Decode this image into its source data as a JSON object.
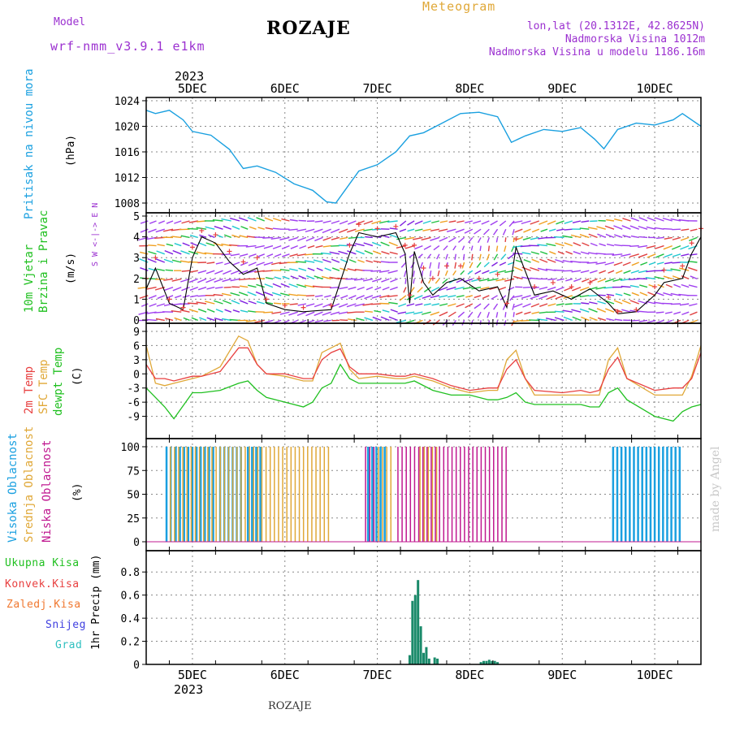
{
  "header": {
    "model_label": "Model",
    "model_name": "wrf-nmm_v3.9.1 e1km",
    "station": "ROZAJE",
    "meteogram": "Meteogram",
    "lonlat": "lon,lat (20.1312E, 42.8625N)",
    "altitude": "Nadmorska Visina 1012m",
    "model_altitude": "Nadmorska Visina u modelu 1186.16m",
    "year_top": "2023",
    "year_bottom": "2023",
    "footer_station": "ROZAJE",
    "credit": "made by Angel"
  },
  "day_labels": [
    "5DEC",
    "6DEC",
    "7DEC",
    "8DEC",
    "9DEC",
    "10DEC"
  ],
  "panels": {
    "pressure": {
      "label": "Pritisak na nivou mora",
      "unit": "(hPa)"
    },
    "wind": {
      "label1": "10m Vjetar",
      "label2": "Brzina i Pravac",
      "unit": "(m/s)",
      "compass": "W <-|-> E",
      "compass_n": "N",
      "compass_s": "S"
    },
    "temp": {
      "label1": "2m Temp",
      "label2": "SFC Temp",
      "label3": "dewpt Temp",
      "unit": "(C)"
    },
    "cloud": {
      "label1": "Visoka Oblacnost",
      "label2": "Srednja Oblacnost",
      "label3": "Niska Oblacnost",
      "unit": "(%)"
    },
    "precip": {
      "unit": "1hr Precip (mm)",
      "legend": [
        "Ukupna Kisa",
        "Konvek.Kisa",
        "Zaledj.Kisa",
        "Snijeg",
        "Grad"
      ]
    }
  },
  "colors": {
    "pressure": "#1aa0e0",
    "temp2m": "#e84040",
    "sfc": "#e0a838",
    "dewpt": "#20c020",
    "high_cloud": "#1aa0e0",
    "mid_cloud": "#e0a838",
    "low_cloud": "#c01890",
    "precip_total": "#1a8a6a",
    "legend_total": "#20c020",
    "legend_conv": "#e84040",
    "legend_frz": "#f07830",
    "legend_snow": "#4040e0",
    "legend_grad": "#30c0c0",
    "wind_speed": "#000000",
    "gust": "#e84040"
  },
  "chart_data": [
    {
      "type": "line",
      "x_unit": "day",
      "x_range": [
        4.5,
        10.5
      ],
      "ylim": [
        1008,
        1024
      ],
      "yticks": [
        1008,
        1012,
        1016,
        1020,
        1024
      ],
      "series": [
        {
          "x": [
            4.5,
            4.6,
            4.75,
            4.9,
            5.0,
            5.2,
            5.4,
            5.55,
            5.7,
            5.9,
            6.1,
            6.3,
            6.45,
            6.55,
            6.65,
            6.8,
            7.0,
            7.2,
            7.35,
            7.5,
            7.7,
            7.9,
            8.1,
            8.3,
            8.45,
            8.6,
            8.8,
            9.0,
            9.2,
            9.35,
            9.45,
            9.6,
            9.8,
            10.0,
            10.2,
            10.3,
            10.5
          ],
          "y": [
            1022.5,
            1022,
            1022.5,
            1021,
            1019.2,
            1018.6,
            1016.4,
            1013.4,
            1013.8,
            1012.8,
            1011,
            1010,
            1008.2,
            1008,
            1010,
            1013,
            1014,
            1016,
            1018.5,
            1019,
            1020.5,
            1022,
            1022.2,
            1021.5,
            1017.5,
            1018.5,
            1019.5,
            1019.2,
            1019.8,
            1018,
            1016.5,
            1019.5,
            1020.5,
            1020.2,
            1021,
            1022,
            1020
          ]
        }
      ]
    },
    {
      "type": "line",
      "x_unit": "day",
      "x_range": [
        4.5,
        10.5
      ],
      "ylim": [
        0,
        5
      ],
      "yticks": [
        0,
        1,
        2,
        3,
        4,
        5
      ],
      "series": [
        {
          "x": [
            4.5,
            4.6,
            4.75,
            4.9,
            5.0,
            5.1,
            5.25,
            5.4,
            5.55,
            5.7,
            5.8,
            6.0,
            6.2,
            6.5,
            6.7,
            6.8,
            7.0,
            7.2,
            7.3,
            7.35,
            7.4,
            7.5,
            7.6,
            7.75,
            7.9,
            8.1,
            8.3,
            8.4,
            8.5,
            8.7,
            8.9,
            9.1,
            9.3,
            9.5,
            9.6,
            9.8,
            10.0,
            10.1,
            10.3,
            10.4,
            10.5
          ],
          "y": [
            1.5,
            2.5,
            0.8,
            0.5,
            3.0,
            4.0,
            3.7,
            2.8,
            2.2,
            2.5,
            0.8,
            0.5,
            0.4,
            0.5,
            3.2,
            4.2,
            4.0,
            4.2,
            3.2,
            0.8,
            3.3,
            1.8,
            1.2,
            1.8,
            2.0,
            1.4,
            1.6,
            0.6,
            3.5,
            1.2,
            1.4,
            1.0,
            1.5,
            0.8,
            0.3,
            0.4,
            1.2,
            1.8,
            2.0,
            3.2,
            4.0
          ]
        },
        {
          "x": [
            4.5,
            4.6,
            4.75,
            4.9,
            5.0,
            5.1,
            5.25,
            5.4,
            5.55,
            5.7,
            5.8,
            6.0,
            6.2,
            6.5,
            6.7,
            6.8,
            7.0,
            7.2,
            7.3,
            7.35,
            7.4,
            7.5,
            7.6,
            7.75,
            7.9,
            8.1,
            8.3,
            8.4,
            8.5,
            8.7,
            8.9,
            9.1,
            9.3,
            9.5,
            9.6,
            9.8,
            10.0,
            10.1,
            10.3,
            10.4,
            10.5
          ],
          "y": [
            2.0,
            3.0,
            1.0,
            0.6,
            3.5,
            4.3,
            4.1,
            3.3,
            2.8,
            3.0,
            1.0,
            0.7,
            0.6,
            0.7,
            3.6,
            4.6,
            4.4,
            4.5,
            3.6,
            1.2,
            3.6,
            2.5,
            2.0,
            2.6,
            2.6,
            2.0,
            2.2,
            0.8,
            3.9,
            1.6,
            1.8,
            1.6,
            1.8,
            1.1,
            0.4,
            0.5,
            1.6,
            2.4,
            2.6,
            3.7,
            4.4
          ]
        }
      ]
    },
    {
      "type": "line",
      "x_unit": "day",
      "x_range": [
        4.5,
        10.5
      ],
      "ylim": [
        -12,
        9
      ],
      "yticks": [
        -9,
        -6,
        -3,
        0,
        3,
        6,
        9
      ],
      "series": [
        {
          "x": [
            4.5,
            4.6,
            4.7,
            4.8,
            5.0,
            5.1,
            5.3,
            5.5,
            5.6,
            5.7,
            5.8,
            6.0,
            6.2,
            6.3,
            6.4,
            6.5,
            6.6,
            6.7,
            6.8,
            7.0,
            7.2,
            7.3,
            7.4,
            7.6,
            7.8,
            8.0,
            8.2,
            8.3,
            8.4,
            8.5,
            8.6,
            8.7,
            9.0,
            9.2,
            9.3,
            9.4,
            9.5,
            9.6,
            9.7,
            10.0,
            10.2,
            10.3,
            10.4,
            10.5
          ],
          "y": [
            2,
            -1,
            -1,
            -1.5,
            -0.5,
            -0.5,
            0.5,
            5.5,
            5.5,
            2,
            0,
            0,
            -1,
            -1,
            3,
            4.5,
            5.3,
            1.5,
            0,
            0,
            -0.5,
            -0.5,
            0,
            -1,
            -2.5,
            -3.5,
            -3,
            -3,
            1,
            3,
            -1,
            -3.5,
            -4,
            -3.5,
            -4,
            -3.5,
            1,
            3.5,
            -1,
            -3.5,
            -3,
            -3,
            -1,
            4.5
          ]
        },
        {
          "x": [
            4.5,
            4.6,
            4.7,
            4.8,
            5.0,
            5.1,
            5.3,
            5.5,
            5.6,
            5.7,
            5.8,
            6.0,
            6.2,
            6.3,
            6.4,
            6.5,
            6.6,
            6.7,
            6.8,
            7.0,
            7.2,
            7.3,
            7.4,
            7.6,
            7.8,
            8.0,
            8.2,
            8.3,
            8.4,
            8.5,
            8.6,
            8.7,
            9.0,
            9.2,
            9.3,
            9.4,
            9.5,
            9.6,
            9.7,
            10.0,
            10.2,
            10.3,
            10.4,
            10.5
          ],
          "y": [
            6,
            -2,
            -2.5,
            -2,
            -1,
            -0.5,
            1.5,
            8,
            7,
            2,
            0,
            -0.5,
            -1.5,
            -1.5,
            4.5,
            5.5,
            6.5,
            1,
            -1,
            -0.5,
            -1,
            -1,
            -0.5,
            -1.5,
            -3,
            -4,
            -3.5,
            -3.5,
            3,
            5,
            -1,
            -4.5,
            -4.5,
            -4.5,
            -4.5,
            -4.5,
            3,
            5.5,
            -1,
            -4.5,
            -4.5,
            -4.5,
            -0.5,
            6
          ]
        },
        {
          "x": [
            4.5,
            4.6,
            4.7,
            4.8,
            5.0,
            5.1,
            5.3,
            5.5,
            5.6,
            5.7,
            5.8,
            6.0,
            6.2,
            6.3,
            6.4,
            6.5,
            6.6,
            6.7,
            6.8,
            7.0,
            7.2,
            7.3,
            7.4,
            7.6,
            7.8,
            8.0,
            8.2,
            8.3,
            8.4,
            8.5,
            8.6,
            8.7,
            9.0,
            9.2,
            9.3,
            9.4,
            9.5,
            9.6,
            9.7,
            10.0,
            10.2,
            10.3,
            10.4,
            10.5
          ],
          "y": [
            -3,
            -5,
            -7,
            -9.5,
            -4,
            -4,
            -3.5,
            -2,
            -1.5,
            -3.5,
            -5,
            -6,
            -7,
            -6,
            -3,
            -2,
            2,
            -1,
            -2,
            -2,
            -2,
            -2,
            -1.5,
            -3.5,
            -4.5,
            -4.5,
            -5.5,
            -5.5,
            -5,
            -4,
            -6,
            -6.5,
            -6.5,
            -6.5,
            -7,
            -7,
            -4,
            -3,
            -5.5,
            -9,
            -10,
            -8,
            -7,
            -6.5
          ]
        }
      ]
    },
    {
      "type": "bar",
      "x_unit": "day",
      "x_range": [
        4.5,
        10.5
      ],
      "ylim": [
        0,
        100
      ],
      "yticks": [
        0,
        25,
        50,
        75,
        100
      ],
      "series": [
        {
          "name": "Visoka Oblacnost",
          "ranges": [
            [
              4.72,
              4.78
            ],
            [
              4.82,
              5.25
            ],
            [
              5.3,
              5.55
            ],
            [
              5.6,
              5.75
            ],
            [
              6.9,
              7.1
            ],
            [
              9.55,
              10.3
            ]
          ],
          "value": 100
        },
        {
          "name": "Srednja Oblacnost",
          "ranges": [
            [
              4.75,
              6.5
            ],
            [
              7.0,
              7.15
            ],
            [
              7.45,
              7.65
            ]
          ],
          "value": 100
        },
        {
          "name": "Niska Oblacnost",
          "ranges": [
            [
              6.85,
              6.95
            ],
            [
              7.2,
              8.4
            ]
          ],
          "value": 100
        }
      ]
    },
    {
      "type": "bar",
      "x_unit": "day",
      "x_range": [
        4.5,
        10.5
      ],
      "ylim": [
        0,
        0.9
      ],
      "yticks": [
        0,
        0.2,
        0.4,
        0.6,
        0.8
      ],
      "x": [
        7.35,
        7.38,
        7.41,
        7.44,
        7.47,
        7.5,
        7.53,
        7.56,
        7.62,
        7.65,
        8.12,
        8.15,
        8.18,
        8.21,
        8.24,
        8.27,
        8.3
      ],
      "values": [
        0.08,
        0.55,
        0.6,
        0.73,
        0.33,
        0.1,
        0.15,
        0.05,
        0.06,
        0.05,
        0.02,
        0.03,
        0.03,
        0.04,
        0.03,
        0.03,
        0.02
      ]
    }
  ]
}
